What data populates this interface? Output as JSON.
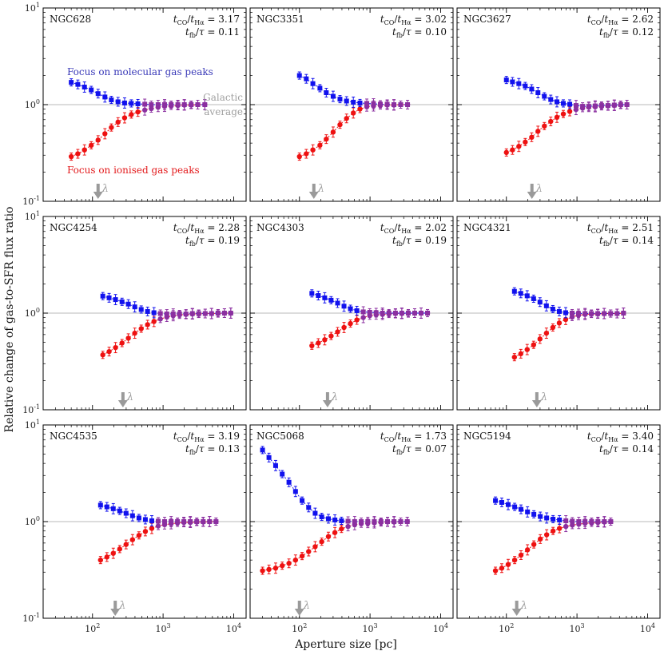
{
  "chart_data": {
    "type": "scatter",
    "xlabel": "Aperture size [pc]",
    "ylabel": "Relative change of gas-to-SFR flux ratio",
    "xscale": "log",
    "yscale": "log",
    "xlim": [
      20,
      15000
    ],
    "ylim": [
      0.1,
      10
    ],
    "x_ticks": [
      "10^2",
      "10^3",
      "10^4"
    ],
    "y_ticks": [
      "10^-1",
      "10^0",
      "10^1"
    ],
    "reference_line": 1.0,
    "annotations": {
      "blue": "Focus on molecular gas peaks",
      "red": "Focus on ionised gas peaks",
      "grey_1": "Galactic",
      "grey_2": "average",
      "lambda_symbol": "λ"
    },
    "colors": {
      "blue": "#1111ee",
      "red": "#ee1111",
      "purple": "#8b2fa0",
      "grey": "#9a9a9a"
    },
    "panels": [
      {
        "name": "NGC628",
        "t_ratio": "t_CO/t_Hα = 3.17",
        "fb_ratio": "t_fb/τ = 0.11",
        "lambda": 120,
        "x": [
          50,
          62,
          77,
          96,
          120,
          150,
          185,
          230,
          285,
          355,
          440,
          550,
          680,
          850,
          1050,
          1300,
          1620,
          2000,
          2500,
          3100,
          3900
        ],
        "blue": [
          1.7,
          1.62,
          1.52,
          1.42,
          1.3,
          1.2,
          1.12,
          1.07,
          1.04,
          1.03,
          1.02,
          1.01,
          1.0,
          1.0,
          1.0,
          1.0,
          1.0,
          1.0,
          1.0,
          1.0,
          1.0
        ],
        "red": [
          0.29,
          0.31,
          0.34,
          0.38,
          0.43,
          0.5,
          0.58,
          0.66,
          0.73,
          0.79,
          0.84,
          0.88,
          0.91,
          0.94,
          0.96,
          0.97,
          0.98,
          0.99,
          0.99,
          1.0,
          1.0
        ]
      },
      {
        "name": "NGC3351",
        "t_ratio": "t_CO/t_Hα = 3.02",
        "fb_ratio": "t_fb/τ = 0.10",
        "lambda": 160,
        "x": [
          100,
          125,
          155,
          195,
          240,
          300,
          375,
          465,
          580,
          720,
          900,
          1120,
          1400,
          1750,
          2180,
          2720,
          3400
        ],
        "blue": [
          2.0,
          1.85,
          1.65,
          1.48,
          1.33,
          1.22,
          1.14,
          1.09,
          1.06,
          1.04,
          1.03,
          1.02,
          1.01,
          1.01,
          1.0,
          1.0,
          1.0
        ],
        "red": [
          0.29,
          0.31,
          0.34,
          0.38,
          0.44,
          0.52,
          0.62,
          0.72,
          0.82,
          0.9,
          0.95,
          0.97,
          0.98,
          0.99,
          0.99,
          1.0,
          1.0
        ]
      },
      {
        "name": "NGC3627",
        "t_ratio": "t_CO/t_Hα = 2.62",
        "fb_ratio": "t_fb/τ = 0.12",
        "lambda": 230,
        "x": [
          100,
          122,
          150,
          185,
          228,
          280,
          345,
          425,
          520,
          640,
          790,
          970,
          1200,
          1470,
          1810,
          2230,
          2750,
          3380,
          4160,
          5100
        ],
        "blue": [
          1.8,
          1.72,
          1.65,
          1.56,
          1.45,
          1.33,
          1.22,
          1.13,
          1.07,
          1.03,
          1.01,
          0.98,
          0.96,
          0.96,
          0.97,
          0.98,
          0.98,
          0.99,
          1.0,
          1.0
        ],
        "red": [
          0.32,
          0.34,
          0.37,
          0.41,
          0.46,
          0.53,
          0.6,
          0.67,
          0.74,
          0.8,
          0.85,
          0.89,
          0.92,
          0.94,
          0.95,
          0.96,
          0.97,
          0.98,
          0.99,
          1.0
        ]
      },
      {
        "name": "NGC4254",
        "t_ratio": "t_CO/t_Hα = 2.28",
        "fb_ratio": "t_fb/τ = 0.19",
        "lambda": 270,
        "x": [
          140,
          172,
          212,
          262,
          322,
          397,
          490,
          603,
          743,
          915,
          1130,
          1390,
          1710,
          2110,
          2600,
          3200,
          3950,
          4860,
          6000,
          7400,
          9100
        ],
        "blue": [
          1.5,
          1.44,
          1.38,
          1.31,
          1.24,
          1.16,
          1.09,
          1.04,
          1.01,
          0.99,
          0.98,
          0.98,
          0.98,
          0.98,
          0.99,
          0.99,
          0.99,
          0.99,
          1.0,
          1.0,
          1.0
        ],
        "red": [
          0.37,
          0.4,
          0.44,
          0.49,
          0.55,
          0.62,
          0.69,
          0.76,
          0.82,
          0.87,
          0.91,
          0.94,
          0.96,
          0.97,
          0.98,
          0.98,
          0.99,
          0.99,
          0.99,
          1.0,
          1.0
        ]
      },
      {
        "name": "NGC4303",
        "t_ratio": "t_CO/t_Hα = 2.02",
        "fb_ratio": "t_fb/τ = 0.19",
        "lambda": 250,
        "x": [
          150,
          185,
          228,
          281,
          347,
          428,
          528,
          651,
          803,
          990,
          1220,
          1500,
          1850,
          2290,
          2820,
          3480,
          4290,
          5290,
          6520
        ],
        "blue": [
          1.6,
          1.52,
          1.44,
          1.36,
          1.27,
          1.18,
          1.11,
          1.06,
          1.03,
          1.02,
          1.01,
          1.0,
          1.0,
          1.0,
          1.0,
          1.0,
          1.0,
          1.0,
          1.0
        ],
        "red": [
          0.46,
          0.49,
          0.53,
          0.58,
          0.64,
          0.71,
          0.78,
          0.85,
          0.9,
          0.94,
          0.96,
          0.97,
          0.98,
          0.99,
          0.99,
          0.99,
          1.0,
          1.0,
          1.0
        ]
      },
      {
        "name": "NGC4321",
        "t_ratio": "t_CO/t_Hα = 2.51",
        "fb_ratio": "t_fb/τ = 0.14",
        "lambda": 270,
        "x": [
          130,
          160,
          197,
          243,
          299,
          369,
          455,
          561,
          692,
          853,
          1050,
          1300,
          1600,
          1970,
          2430,
          3000,
          3700,
          4560
        ],
        "blue": [
          1.68,
          1.6,
          1.51,
          1.41,
          1.3,
          1.19,
          1.1,
          1.04,
          1.01,
          1.0,
          0.99,
          0.99,
          0.99,
          0.99,
          0.99,
          0.99,
          0.99,
          1.0
        ],
        "red": [
          0.35,
          0.38,
          0.42,
          0.47,
          0.54,
          0.62,
          0.71,
          0.79,
          0.86,
          0.91,
          0.95,
          0.97,
          0.98,
          0.98,
          0.99,
          0.99,
          0.99,
          1.0
        ]
      },
      {
        "name": "NGC4535",
        "t_ratio": "t_CO/t_Hα = 3.19",
        "fb_ratio": "t_fb/τ = 0.13",
        "lambda": 210,
        "x": [
          130,
          160,
          197,
          243,
          299,
          369,
          455,
          561,
          692,
          853,
          1050,
          1300,
          1600,
          1970,
          2430,
          3000,
          3700,
          4560,
          5620
        ],
        "blue": [
          1.48,
          1.42,
          1.36,
          1.29,
          1.22,
          1.15,
          1.09,
          1.05,
          1.02,
          1.01,
          1.0,
          1.0,
          1.0,
          1.0,
          1.0,
          1.0,
          1.0,
          1.0,
          1.0
        ],
        "red": [
          0.4,
          0.43,
          0.47,
          0.52,
          0.58,
          0.65,
          0.72,
          0.79,
          0.85,
          0.9,
          0.93,
          0.95,
          0.97,
          0.98,
          0.98,
          0.99,
          0.99,
          1.0,
          1.0
        ]
      },
      {
        "name": "NGC5068",
        "t_ratio": "t_CO/t_Hα = 1.73",
        "fb_ratio": "t_fb/τ = 0.07",
        "lambda": 100,
        "x": [
          30,
          37,
          46,
          57,
          71,
          88,
          109,
          135,
          167,
          207,
          257,
          318,
          394,
          488,
          605,
          750,
          929,
          1150,
          1430,
          1770,
          2190,
          2720,
          3370
        ],
        "blue": [
          5.5,
          4.6,
          3.8,
          3.1,
          2.55,
          2.05,
          1.65,
          1.4,
          1.22,
          1.12,
          1.07,
          1.04,
          1.02,
          1.01,
          1.0,
          1.0,
          1.0,
          1.0,
          1.0,
          1.0,
          1.0,
          1.0,
          1.0
        ],
        "red": [
          0.31,
          0.32,
          0.33,
          0.35,
          0.37,
          0.4,
          0.44,
          0.49,
          0.55,
          0.62,
          0.7,
          0.77,
          0.84,
          0.89,
          0.93,
          0.95,
          0.96,
          0.97,
          0.98,
          0.99,
          0.99,
          1.0,
          1.0
        ]
      },
      {
        "name": "NGC5194",
        "t_ratio": "t_CO/t_Hα = 3.40",
        "fb_ratio": "t_fb/τ = 0.14",
        "lambda": 140,
        "x": [
          70,
          86,
          106,
          131,
          161,
          199,
          245,
          302,
          372,
          458,
          565,
          696,
          858,
          1060,
          1300,
          1610,
          1980,
          2440,
          3010
        ],
        "blue": [
          1.65,
          1.58,
          1.5,
          1.42,
          1.34,
          1.26,
          1.19,
          1.13,
          1.09,
          1.06,
          1.04,
          1.02,
          1.01,
          1.0,
          1.0,
          1.0,
          1.0,
          1.0,
          1.0
        ],
        "red": [
          0.31,
          0.33,
          0.36,
          0.4,
          0.45,
          0.51,
          0.58,
          0.66,
          0.73,
          0.8,
          0.85,
          0.89,
          0.92,
          0.94,
          0.96,
          0.97,
          0.98,
          0.99,
          1.0
        ]
      }
    ]
  }
}
